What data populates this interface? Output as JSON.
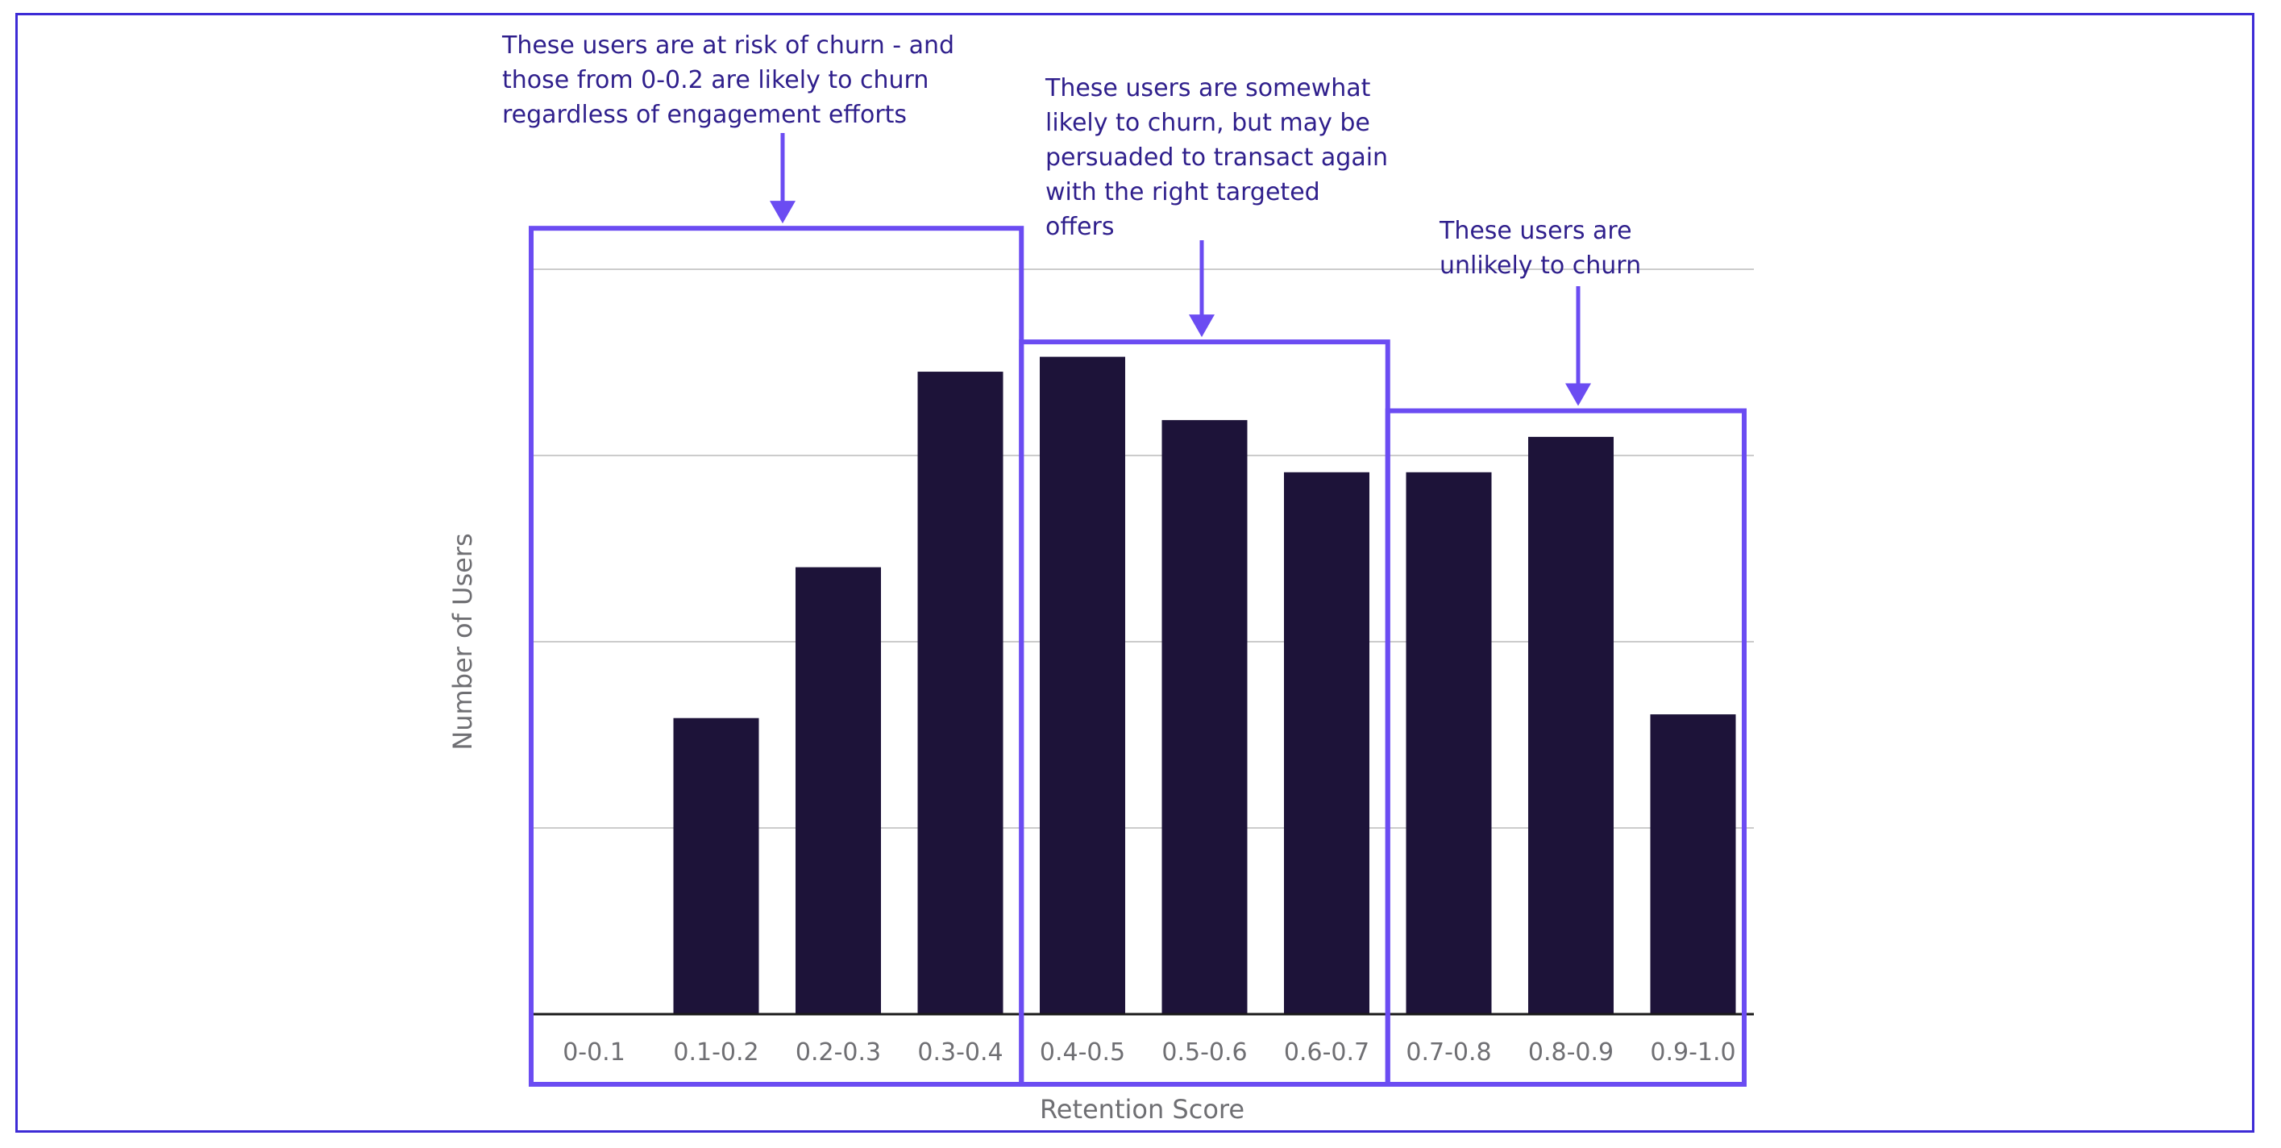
{
  "chart_data": {
    "type": "bar",
    "title": "",
    "xlabel": "Retention Score",
    "ylabel": "Number of Users",
    "categories": [
      "0-0.1",
      "0.1-0.2",
      "0.2-0.3",
      "0.3-0.4",
      "0.4-0.5",
      "0.5-0.6",
      "0.6-0.7",
      "0.7-0.8",
      "0.8-0.9",
      "0.9-1.0"
    ],
    "values": [
      0,
      1.59,
      2.4,
      3.45,
      3.53,
      3.19,
      2.91,
      2.91,
      3.1,
      1.61
    ],
    "ylim": [
      0,
      4
    ],
    "y_tick_labels_shown": false,
    "grid": true,
    "bar_color": "#1d1339",
    "grid_color": "#cccccc",
    "groups": [
      {
        "name": "at-risk",
        "categories": [
          "0-0.1",
          "0.1-0.2",
          "0.2-0.3",
          "0.3-0.4"
        ],
        "annotation": "These users are at risk of churn - and\nthose from 0-0.2 are likely to churn\nregardless of engagement efforts",
        "box_top_value": 4.22
      },
      {
        "name": "somewhat-likely",
        "categories": [
          "0.4-0.5",
          "0.5-0.6",
          "0.6-0.7"
        ],
        "annotation": "These users are somewhat\nlikely to churn, but may be\npersuaded to transact again\nwith the right targeted\noffers",
        "box_top_value": 3.61
      },
      {
        "name": "unlikely",
        "categories": [
          "0.7-0.8",
          "0.8-0.9",
          "0.9-1.0"
        ],
        "annotation": "These users are\nunlikely to churn",
        "box_top_value": 3.24
      }
    ],
    "annotation_color": "#2f1f8c",
    "box_color": "#6b4cf2"
  }
}
